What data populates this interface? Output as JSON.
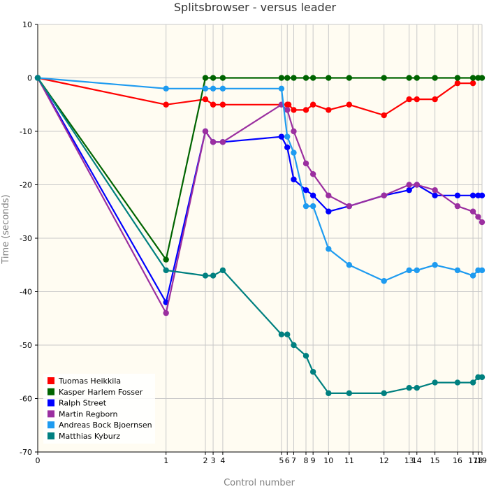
{
  "chart_data": {
    "type": "line",
    "title": "Splitsbrowser - versus leader",
    "xlabel": "Control number",
    "ylabel": "Time (seconds)",
    "ylim": [
      -70,
      10
    ],
    "yticks": [
      10,
      0,
      -10,
      -20,
      -30,
      -40,
      -50,
      -60,
      -70
    ],
    "xticks": [
      {
        "label": "0",
        "x": 0
      },
      {
        "label": "1",
        "x": 199
      },
      {
        "label": "2",
        "x": 260
      },
      {
        "label": "3",
        "x": 272
      },
      {
        "label": "4",
        "x": 287
      },
      {
        "label": "5",
        "x": 378
      },
      {
        "label": "6",
        "x": 387
      },
      {
        "label": "7",
        "x": 397
      },
      {
        "label": "8",
        "x": 416
      },
      {
        "label": "9",
        "x": 427
      },
      {
        "label": "10",
        "x": 451
      },
      {
        "label": "11",
        "x": 483
      },
      {
        "label": "12",
        "x": 537
      },
      {
        "label": "13",
        "x": 576
      },
      {
        "label": "14",
        "x": 588
      },
      {
        "label": "15",
        "x": 616
      },
      {
        "label": "16",
        "x": 651
      },
      {
        "label": "17",
        "x": 675
      },
      {
        "label": "18",
        "x": 683
      },
      {
        "label": "19",
        "x": 689
      }
    ],
    "grid": true,
    "legend_position": "bottom-left",
    "background": "#fffcf2",
    "series": [
      {
        "name": "Tuomas Heikkila",
        "color": "#ff0000",
        "points": [
          [
            0,
            0
          ],
          [
            199,
            -5
          ],
          [
            260,
            -4
          ],
          [
            272,
            -5
          ],
          [
            287,
            -5
          ],
          [
            387,
            -5
          ],
          [
            389,
            -5
          ],
          [
            397,
            -6
          ],
          [
            416,
            -6
          ],
          [
            427,
            -5
          ],
          [
            451,
            -6
          ],
          [
            483,
            -5
          ],
          [
            537,
            -7
          ],
          [
            576,
            -4
          ],
          [
            588,
            -4
          ],
          [
            616,
            -4
          ],
          [
            651,
            -1
          ],
          [
            675,
            -1
          ]
        ]
      },
      {
        "name": "Kasper Harlem Fosser",
        "color": "#006400",
        "points": [
          [
            0,
            0
          ],
          [
            199,
            -34
          ],
          [
            260,
            0
          ],
          [
            272,
            0
          ],
          [
            287,
            0
          ],
          [
            378,
            0
          ],
          [
            387,
            0
          ],
          [
            397,
            0
          ],
          [
            416,
            0
          ],
          [
            427,
            0
          ],
          [
            451,
            0
          ],
          [
            483,
            0
          ],
          [
            537,
            0
          ],
          [
            576,
            0
          ],
          [
            588,
            0
          ],
          [
            616,
            0
          ],
          [
            651,
            0
          ],
          [
            675,
            0
          ],
          [
            683,
            0
          ],
          [
            689,
            0
          ]
        ]
      },
      {
        "name": "Ralph Street",
        "color": "#0000ff",
        "points": [
          [
            0,
            0
          ],
          [
            199,
            -42
          ],
          [
            260,
            -10
          ],
          [
            272,
            -12
          ],
          [
            287,
            -12
          ],
          [
            378,
            -11
          ],
          [
            387,
            -13
          ],
          [
            397,
            -19
          ],
          [
            416,
            -21
          ],
          [
            427,
            -22
          ],
          [
            451,
            -25
          ],
          [
            483,
            -24
          ],
          [
            537,
            -22
          ],
          [
            576,
            -21
          ],
          [
            588,
            -20
          ],
          [
            616,
            -22
          ],
          [
            651,
            -22
          ],
          [
            675,
            -22
          ],
          [
            683,
            -22
          ],
          [
            689,
            -22
          ]
        ]
      },
      {
        "name": "Martin Regborn",
        "color": "#9b2fa0",
        "points": [
          [
            0,
            0
          ],
          [
            199,
            -44
          ],
          [
            260,
            -10
          ],
          [
            272,
            -12
          ],
          [
            287,
            -12
          ],
          [
            378,
            -5
          ],
          [
            387,
            -6
          ],
          [
            397,
            -10
          ],
          [
            416,
            -16
          ],
          [
            427,
            -18
          ],
          [
            451,
            -22
          ],
          [
            483,
            -24
          ],
          [
            537,
            -22
          ],
          [
            576,
            -20
          ],
          [
            588,
            -20
          ],
          [
            616,
            -21
          ],
          [
            651,
            -24
          ],
          [
            675,
            -25
          ],
          [
            683,
            -26
          ],
          [
            689,
            -27
          ]
        ]
      },
      {
        "name": "Andreas Bock Bjoernsen",
        "color": "#1e9bf0",
        "points": [
          [
            0,
            0
          ],
          [
            199,
            -2
          ],
          [
            260,
            -2
          ],
          [
            272,
            -2
          ],
          [
            287,
            -2
          ],
          [
            378,
            -2
          ],
          [
            387,
            -11
          ],
          [
            397,
            -14
          ],
          [
            416,
            -24
          ],
          [
            427,
            -24
          ],
          [
            451,
            -32
          ],
          [
            483,
            -35
          ],
          [
            537,
            -38
          ],
          [
            576,
            -36
          ],
          [
            588,
            -36
          ],
          [
            616,
            -35
          ],
          [
            651,
            -36
          ],
          [
            675,
            -37
          ],
          [
            683,
            -36
          ],
          [
            689,
            -36
          ]
        ]
      },
      {
        "name": "Matthias Kyburz",
        "color": "#008080",
        "points": [
          [
            0,
            0
          ],
          [
            199,
            -36
          ],
          [
            260,
            -37
          ],
          [
            272,
            -37
          ],
          [
            287,
            -36
          ],
          [
            378,
            -48
          ],
          [
            387,
            -48
          ],
          [
            397,
            -50
          ],
          [
            416,
            -52
          ],
          [
            427,
            -55
          ],
          [
            451,
            -59
          ],
          [
            483,
            -59
          ],
          [
            537,
            -59
          ],
          [
            576,
            -58
          ],
          [
            588,
            -58
          ],
          [
            616,
            -57
          ],
          [
            651,
            -57
          ],
          [
            675,
            -57
          ],
          [
            683,
            -56
          ],
          [
            689,
            -56
          ]
        ]
      }
    ]
  }
}
